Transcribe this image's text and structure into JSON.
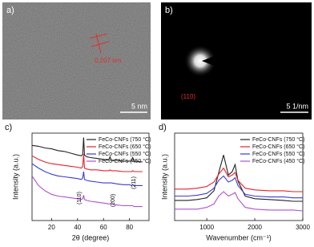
{
  "images": [
    {
      "label": "a)",
      "annotation": "0.207 nm",
      "scale_bar": "5 nm"
    },
    {
      "label": "b)",
      "annotation": "(110)",
      "scale_bar": "5 1/nm"
    }
  ],
  "chart_data": [
    {
      "type": "line",
      "panel_label": "c)",
      "x_label": "2θ (degree)",
      "y_label": "Intensity (a.u.)",
      "legend": "upper right",
      "x": [
        5,
        10,
        15,
        20,
        25,
        30,
        35,
        40,
        43,
        44,
        44.7,
        45.4,
        47,
        50,
        55,
        60,
        64,
        65,
        66,
        70,
        75,
        80,
        81.5,
        82.5,
        83.5,
        90
      ],
      "xlim": [
        5,
        95
      ],
      "xticks": [
        20,
        40,
        60,
        80
      ],
      "ylim": [
        0,
        10
      ],
      "annotations": [
        "(110)",
        "(200)",
        "(211)"
      ],
      "series": [
        {
          "name": "FeCo-CNFs (750 °C)",
          "color": "#222222",
          "values": [
            8.6,
            8.5,
            8.3,
            8.2,
            8.0,
            7.9,
            7.7,
            7.5,
            7.4,
            7.6,
            9.5,
            7.5,
            7.3,
            7.2,
            7.1,
            7.0,
            6.9,
            7.3,
            6.9,
            6.9,
            6.8,
            6.8,
            6.8,
            7.2,
            6.8,
            6.7
          ]
        },
        {
          "name": "FeCo-CNFs (650 °C)",
          "color": "#e8202a",
          "values": [
            7.4,
            7.0,
            6.7,
            6.5,
            6.4,
            6.3,
            6.2,
            6.1,
            6.0,
            6.2,
            7.6,
            6.0,
            5.9,
            5.8,
            5.8,
            5.7,
            5.7,
            5.8,
            5.7,
            5.7,
            5.6,
            5.6,
            5.6,
            5.7,
            5.6,
            5.6
          ]
        },
        {
          "name": "FeCo-CNFs (550 °C)",
          "color": "#3a3adb",
          "values": [
            6.5,
            6.0,
            5.6,
            5.3,
            5.1,
            5.0,
            4.9,
            4.8,
            4.7,
            4.9,
            5.6,
            4.7,
            4.6,
            4.5,
            4.4,
            4.3,
            4.3,
            4.3,
            4.3,
            4.2,
            4.1,
            4.1,
            4.0,
            4.1,
            4.0,
            4.0
          ]
        },
        {
          "name": "FeCo-CNFs (450 °C)",
          "color": "#b04fd0",
          "values": [
            5.1,
            4.0,
            3.4,
            3.0,
            2.8,
            2.7,
            2.6,
            2.5,
            2.4,
            2.5,
            2.9,
            2.4,
            2.3,
            2.2,
            2.1,
            2.0,
            1.9,
            1.9,
            1.9,
            1.8,
            1.7,
            1.7,
            1.7,
            1.7,
            1.6,
            1.6
          ]
        }
      ]
    },
    {
      "type": "line",
      "panel_label": "d)",
      "x_label": "Wavenumber (cm⁻¹)",
      "y_label": "Intensity (a.u.)",
      "legend": "upper right",
      "x": [
        330,
        600,
        800,
        1000,
        1150,
        1250,
        1350,
        1450,
        1530,
        1590,
        1650,
        1800,
        2000,
        2300,
        2600,
        2800,
        3000
      ],
      "xlim": [
        330,
        3000
      ],
      "xticks": [
        1000,
        2000,
        3000
      ],
      "ylim": [
        0,
        10
      ],
      "series": [
        {
          "name": "FeCo-CNFs (750 °C)",
          "color": "#222222",
          "values": [
            2.3,
            2.3,
            2.4,
            2.6,
            3.4,
            5.5,
            7.5,
            5.2,
            5.6,
            6.4,
            4.5,
            2.8,
            2.5,
            2.4,
            2.3,
            2.2,
            2.2
          ]
        },
        {
          "name": "FeCo-CNFs (650 °C)",
          "color": "#e8202a",
          "values": [
            3.6,
            3.6,
            3.7,
            3.9,
            4.4,
            5.3,
            6.0,
            5.0,
            5.2,
            5.5,
            4.6,
            3.7,
            3.5,
            3.4,
            3.4,
            3.3,
            3.3
          ]
        },
        {
          "name": "FeCo-CNFs (550 °C)",
          "color": "#3a3adb",
          "values": [
            2.8,
            2.8,
            2.9,
            3.1,
            3.7,
            4.6,
            5.1,
            4.4,
            4.6,
            4.9,
            4.0,
            3.0,
            2.8,
            2.7,
            2.7,
            2.6,
            2.6
          ]
        },
        {
          "name": "FeCo-CNFs (450 °C)",
          "color": "#b04fd0",
          "values": [
            1.3,
            1.3,
            1.3,
            1.5,
            1.9,
            2.8,
            3.3,
            2.8,
            3.0,
            3.2,
            2.5,
            1.5,
            1.3,
            1.2,
            1.2,
            1.2,
            1.1
          ]
        }
      ]
    }
  ]
}
